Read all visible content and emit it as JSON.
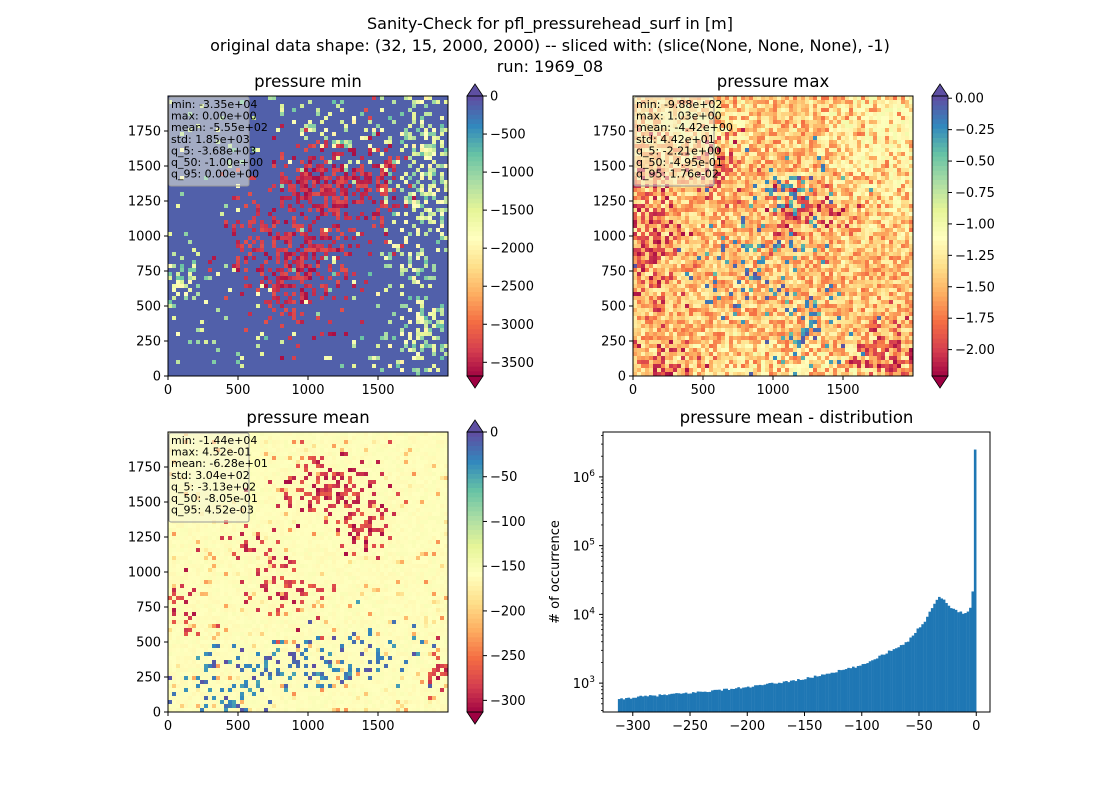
{
  "figure": {
    "title_lines": [
      "Sanity-Check for pfl_pressurehead_surf in [m]",
      "original data shape: (32, 15, 2000, 2000) -- sliced with: (slice(None, None, None), -1)",
      "run: 1969_08"
    ]
  },
  "colors": {
    "spectral": [
      "#9e0142",
      "#d53e4f",
      "#f46d43",
      "#fdae61",
      "#fee08b",
      "#ffffbf",
      "#e6f598",
      "#abdda4",
      "#66c2a5",
      "#3288bd",
      "#5e4fa2"
    ],
    "hist_bar": "#1f77b4",
    "statbox_fill": "#f5f5dc"
  },
  "chart_data": [
    {
      "type": "heatmap",
      "title": "pressure min",
      "colormap": "Spectral",
      "x_ticks": [
        "0",
        "500",
        "1000",
        "1500"
      ],
      "y_ticks": [
        "0",
        "250",
        "500",
        "750",
        "1000",
        "1250",
        "1500",
        "1750"
      ],
      "xlim": [
        0,
        2000
      ],
      "ylim": [
        0,
        2000
      ],
      "colorbar": {
        "ticks": [
          "0",
          "−500",
          "−1000",
          "−1500",
          "−2000",
          "−2500",
          "−3000",
          "−3500"
        ],
        "range": [
          -3680,
          0
        ],
        "extend": "both"
      },
      "stats": [
        "min: -3.35e+04",
        "max: 0.00e+00",
        "mean: -5.55e+02",
        "std: 1.85e+03",
        "q_5: -3.68e+03",
        "q_50: -1.00e+00",
        "q_95: 0.00e+00"
      ]
    },
    {
      "type": "heatmap",
      "title": "pressure max",
      "colormap": "Spectral",
      "x_ticks": [
        "0",
        "500",
        "1000",
        "1500"
      ],
      "y_ticks": [
        "0",
        "250",
        "500",
        "750",
        "1000",
        "1250",
        "1500",
        "1750"
      ],
      "xlim": [
        0,
        2000
      ],
      "ylim": [
        0,
        2000
      ],
      "colorbar": {
        "ticks": [
          "0.00",
          "−0.25",
          "−0.50",
          "−0.75",
          "−1.00",
          "−1.25",
          "−1.50",
          "−1.75",
          "−2.00"
        ],
        "range": [
          -2.21,
          0.0176
        ],
        "extend": "both"
      },
      "stats": [
        "min: -9.88e+02",
        "max: 1.03e+00",
        "mean: -4.42e+00",
        "std: 4.42e+01",
        "q_5: -2.21e+00",
        "q_50: -4.95e-01",
        "q_95: 1.76e-02"
      ]
    },
    {
      "type": "heatmap",
      "title": "pressure mean",
      "colormap": "Spectral",
      "x_ticks": [
        "0",
        "500",
        "1000",
        "1500"
      ],
      "y_ticks": [
        "0",
        "250",
        "500",
        "750",
        "1000",
        "1250",
        "1500",
        "1750"
      ],
      "xlim": [
        0,
        2000
      ],
      "ylim": [
        0,
        2000
      ],
      "colorbar": {
        "ticks": [
          "0",
          "−50",
          "−100",
          "−150",
          "−200",
          "−250",
          "−300"
        ],
        "range": [
          -313,
          0.00452
        ],
        "extend": "both"
      },
      "stats": [
        "min: -1.44e+04",
        "max: 4.52e-01",
        "mean: -6.28e+01",
        "std: 3.04e+02",
        "q_5: -3.13e+02",
        "q_50: -8.05e-01",
        "q_95: 4.52e-03"
      ]
    },
    {
      "type": "bar",
      "title": "pressure mean - distribution",
      "ylabel": "# of occurrence",
      "xlabel": "",
      "y_scale": "log",
      "xlim": [
        -326,
        12
      ],
      "ylim": [
        380,
        4500000
      ],
      "x_ticks": [
        "−300",
        "−250",
        "−200",
        "−150",
        "−100",
        "−50",
        "0"
      ],
      "y_ticks": [
        "10^3",
        "10^4",
        "10^5",
        "10^6"
      ],
      "bins": {
        "start": -313,
        "end": 0,
        "count": 150
      },
      "profile_x": [
        -313,
        -300,
        -250,
        -200,
        -150,
        -100,
        -60,
        -45,
        -40,
        -35,
        -32,
        -30,
        -27,
        -24,
        -20,
        -15,
        -12,
        -8,
        -5,
        -3,
        -2,
        -1,
        -0.5
      ],
      "profile_y": [
        570,
        620,
        720,
        870,
        1150,
        1800,
        4000,
        8000,
        11500,
        15500,
        18500,
        17500,
        15000,
        13000,
        12000,
        11000,
        10500,
        11000,
        12500,
        22000,
        60000,
        200000,
        2500000
      ]
    }
  ]
}
